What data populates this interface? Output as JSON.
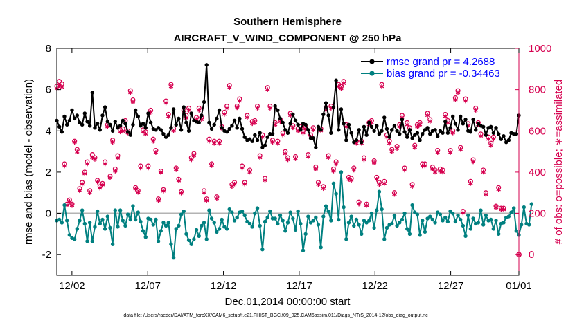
{
  "chart_data": {
    "type": "line",
    "title": "Southern Hemisphere",
    "subtitle": "AIRCRAFT_V_WIND_COMPONENT @ 250 hPa",
    "xlabel": "Dec.01,2014 00:00:00 start",
    "ylabel_left": "rmse and bias (model - observation)",
    "ylabel_right": "# of obs: o=possible; ∗=assimilated",
    "xlim": [
      0.5,
      31.0
    ],
    "ylim_left": [
      -3,
      8
    ],
    "ylim_right": [
      -100,
      1000
    ],
    "x_tick_values": [
      1.5,
      6.5,
      11.5,
      16.5,
      21.5,
      26.5,
      31.0
    ],
    "x_tick_labels": [
      "12/02",
      "12/07",
      "12/12",
      "12/17",
      "12/22",
      "12/27",
      "01/01"
    ],
    "y_ticks_left": [
      -2,
      0,
      2,
      4,
      6,
      8
    ],
    "y_ticks_right": [
      0,
      200,
      400,
      600,
      800,
      1000
    ],
    "colors": {
      "rmse": "#000000",
      "bias": "#008080",
      "obs": "#d6004f",
      "zero_line": "#b3b3b3",
      "right_axis": "#d6004f"
    },
    "legend": {
      "location": "top-right",
      "entries": [
        "rmse grand pr = 4.2688",
        "bias grand pr = -0.34463"
      ]
    },
    "footer": "data file: /Users/raeder/DAI/ATM_forcXX/CAM6_setup/f.e21.FHIST_BGC.f09_025.CAM6assim.011/Diags_NTrS_2014-12/obs_diag_output.nc",
    "series": [
      {
        "name": "rmse",
        "axis": "left",
        "values": [
          4.5,
          4.2,
          3.95,
          4.7,
          4.3,
          4.5,
          5.0,
          4.6,
          4.75,
          4.4,
          4.3,
          4.85,
          4.45,
          4.25,
          5.85,
          4.15,
          4.35,
          4.05,
          4.75,
          5.15,
          4.45,
          4.3,
          4.0,
          4.45,
          4.15,
          4.25,
          4.5,
          4.35,
          3.95,
          3.8,
          4.3,
          5.0,
          4.7,
          4.25,
          4.35,
          4.15,
          4.85,
          4.4,
          4.1,
          4.05,
          4.15,
          4.05,
          3.85,
          3.7,
          3.8,
          4.15,
          5.05,
          4.3,
          4.6,
          4.05,
          5.15,
          4.4,
          4.0,
          4.85,
          4.5,
          4.45,
          4.4,
          4.75,
          5.4,
          7.2,
          4.4,
          4.1,
          4.3,
          4.6,
          5.0,
          4.15,
          4.0,
          3.95,
          4.1,
          4.25,
          4.5,
          4.15,
          4.6,
          4.1,
          3.7,
          3.55,
          3.6,
          3.5,
          3.8,
          3.55,
          3.9,
          3.2,
          3.3,
          3.7,
          3.85,
          3.85,
          5.2,
          5.0,
          4.6,
          4.4,
          4.05,
          3.9,
          4.35,
          4.8,
          4.5,
          4.3,
          4.05,
          4.35,
          4.3,
          4.05,
          3.65,
          3.65,
          3.2,
          4.2,
          4.05,
          4.8,
          5.35,
          4.75,
          3.9,
          5.15,
          6.45,
          4.05,
          5.05,
          4.35,
          3.55,
          4.3,
          3.9,
          3.45,
          3.55,
          4.05,
          3.45,
          4.2,
          3.8,
          4.4,
          4.2,
          4.0,
          4.25,
          3.85,
          4.0,
          4.65,
          4.1,
          3.7,
          4.05,
          4.25,
          4.0,
          3.85,
          4.55,
          3.95,
          3.7,
          4.05,
          3.65,
          3.8,
          3.9,
          3.55,
          3.85,
          4.05,
          4.15,
          3.85,
          4.0,
          4.05,
          3.75,
          4.0,
          3.9,
          4.45,
          3.9,
          4.15,
          4.7,
          4.35,
          4.05,
          4.7,
          4.35,
          4.55,
          4.0,
          3.95,
          4.55,
          4.05,
          4.35,
          4.25,
          4.2,
          3.8,
          4.15,
          4.2,
          3.9,
          4.15,
          3.85,
          3.6,
          3.75,
          3.45,
          3.55,
          3.9,
          3.85,
          3.85,
          4.75
        ]
      },
      {
        "name": "bias",
        "axis": "left",
        "values": [
          -0.35,
          -0.3,
          -0.45,
          0.4,
          -0.35,
          -1.05,
          -1.2,
          -1.25,
          -0.75,
          -0.35,
          0.15,
          -0.5,
          -1.35,
          -0.45,
          -1.35,
          -0.65,
          0.1,
          -0.5,
          -0.3,
          -0.75,
          -0.15,
          -0.7,
          -1.5,
          0.15,
          -0.65,
          0.15,
          -0.35,
          -0.6,
          -0.05,
          -0.3,
          0.35,
          -0.3,
          0.05,
          -0.4,
          -0.85,
          -1.15,
          -0.25,
          -0.3,
          -0.55,
          -0.3,
          -1.35,
          -0.85,
          -0.45,
          -0.6,
          -0.45,
          -1.5,
          -2.15,
          -0.75,
          -0.6,
          -0.05,
          0.1,
          -1.0,
          -1.3,
          -1.5,
          -1.25,
          -0.8,
          -1.1,
          -0.6,
          -0.45,
          -1.25,
          0.15,
          -0.25,
          -0.45,
          -0.9,
          -0.75,
          -0.3,
          -0.65,
          -0.75,
          0.2,
          0.05,
          -0.35,
          -0.2,
          0.05,
          0.1,
          -0.1,
          -0.4,
          -0.5,
          -0.65,
          0.0,
          0.25,
          -0.6,
          -1.75,
          -0.4,
          -0.2,
          0.1,
          -0.25,
          -0.25,
          -0.5,
          -0.1,
          -0.35,
          -0.85,
          -0.45,
          0.05,
          -0.25,
          -0.8,
          0.1,
          -0.5,
          -1.8,
          -1.0,
          -0.15,
          -0.45,
          -0.35,
          -0.2,
          -0.55,
          -1.65,
          -0.15,
          0.35,
          0.1,
          -0.35,
          1.45,
          0.95,
          -0.3,
          2.0,
          0.3,
          -1.25,
          -0.45,
          -0.15,
          -0.6,
          -0.3,
          -0.55,
          -1.0,
          -0.35,
          -0.45,
          -0.35,
          0.0,
          -0.7,
          0.15,
          1.05,
          0.2,
          -1.25,
          -0.7,
          -0.55,
          -0.5,
          -0.1,
          -0.6,
          -0.45,
          -0.3,
          0.0,
          -0.75,
          -1.0,
          0.4,
          0.05,
          -0.05,
          -1.05,
          -0.35,
          -0.9,
          -0.25,
          -0.15,
          -0.3,
          -0.45,
          0.05,
          -0.05,
          -0.35,
          -0.2,
          -0.4,
          0.1,
          0.0,
          -0.4,
          -0.1,
          -0.3,
          -0.6,
          -1.1,
          -0.1,
          -0.75,
          -0.25,
          -0.5,
          -0.45,
          0.15,
          -0.55,
          -0.1,
          -0.35,
          -0.3,
          -0.75,
          -0.35,
          -1.0,
          -0.5,
          -0.45,
          -0.2,
          -0.15,
          0.05,
          0.25,
          -0.85,
          -1.05,
          -0.55,
          0.3,
          -0.5,
          -0.55,
          0.45
        ]
      },
      {
        "name": "obs possible",
        "axis": "right",
        "values": [
          817,
          840,
          828,
          440,
          245,
          265,
          245,
          550,
          510,
          320,
          350,
          400,
          450,
          310,
          485,
          470,
          360,
          330,
          345,
          450,
          630,
          380,
          555,
          415,
          480,
          605,
          610,
          650,
          600,
          795,
          750,
          325,
          310,
          430,
          605,
          595,
          430,
          700,
          560,
          505,
          270,
          405,
          315,
          745,
          680,
          825,
          610,
          420,
          365,
          305,
          700,
          675,
          710,
          470,
          490,
          665,
          710,
          665,
          310,
          270,
          560,
          440,
          550,
          280,
          550,
          620,
          690,
          720,
          820,
          340,
          350,
          720,
          755,
          430,
          350,
          675,
          410,
          645,
          650,
          720,
          480,
          580,
          370,
          810,
          720,
          555,
          640,
          550,
          655,
          590,
          500,
          470,
          685,
          625,
          475,
          610,
          620,
          600,
          620,
          485,
          580,
          615,
          425,
          350,
          610,
          330,
          710,
          480,
          720,
          415,
          450,
          825,
          815,
          840,
          630,
          375,
          370,
          420,
          550,
          255,
          550,
          470,
          245,
          640,
          650,
          455,
          375,
          350,
          825,
          355,
          580,
          550,
          510,
          300,
          525,
          630,
          675,
          420,
          640,
          615,
          340,
          530,
          630,
          640,
          440,
          440,
          685,
          655,
          425,
          410,
          505,
          415,
          410,
          680,
          650,
          505,
          600,
          760,
          795,
          520,
          210,
          755,
          635,
          355,
          460,
          710,
          640,
          585,
          410,
          300,
          570,
          540,
          570,
          235,
          325,
          225,
          225
        ]
      },
      {
        "name": "obs assimilated",
        "axis": "right",
        "values": [
          805,
          820,
          812,
          430,
          240,
          258,
          238,
          545,
          498,
          310,
          342,
          392,
          440,
          300,
          470,
          462,
          352,
          322,
          338,
          440,
          620,
          372,
          545,
          405,
          468,
          595,
          598,
          640,
          590,
          785,
          740,
          318,
          302,
          420,
          595,
          585,
          420,
          690,
          550,
          495,
          262,
          398,
          308,
          735,
          670,
          815,
          600,
          412,
          358,
          298,
          690,
          662,
          700,
          460,
          480,
          655,
          700,
          655,
          300,
          262,
          550,
          432,
          540,
          272,
          540,
          610,
          680,
          710,
          810,
          330,
          342,
          712,
          745,
          420,
          342,
          665,
          400,
          635,
          640,
          710,
          470,
          570,
          360,
          800,
          710,
          545,
          630,
          540,
          645,
          580,
          490,
          460,
          675,
          615,
          465,
          600,
          610,
          590,
          610,
          475,
          570,
          605,
          415,
          340,
          600,
          320,
          700,
          470,
          710,
          405,
          440,
          815,
          805,
          830,
          620,
          365,
          360,
          410,
          540,
          245,
          540,
          460,
          238,
          630,
          640,
          445,
          365,
          340,
          815,
          345,
          570,
          540,
          500,
          292,
          515,
          620,
          665,
          410,
          630,
          605,
          330,
          520,
          620,
          630,
          430,
          430,
          675,
          645,
          415,
          400,
          495,
          405,
          400,
          670,
          640,
          495,
          590,
          750,
          785,
          510,
          202,
          745,
          625,
          345,
          450,
          700,
          630,
          575,
          400,
          292,
          560,
          530,
          560,
          228,
          315,
          218,
          218
        ]
      }
    ]
  }
}
